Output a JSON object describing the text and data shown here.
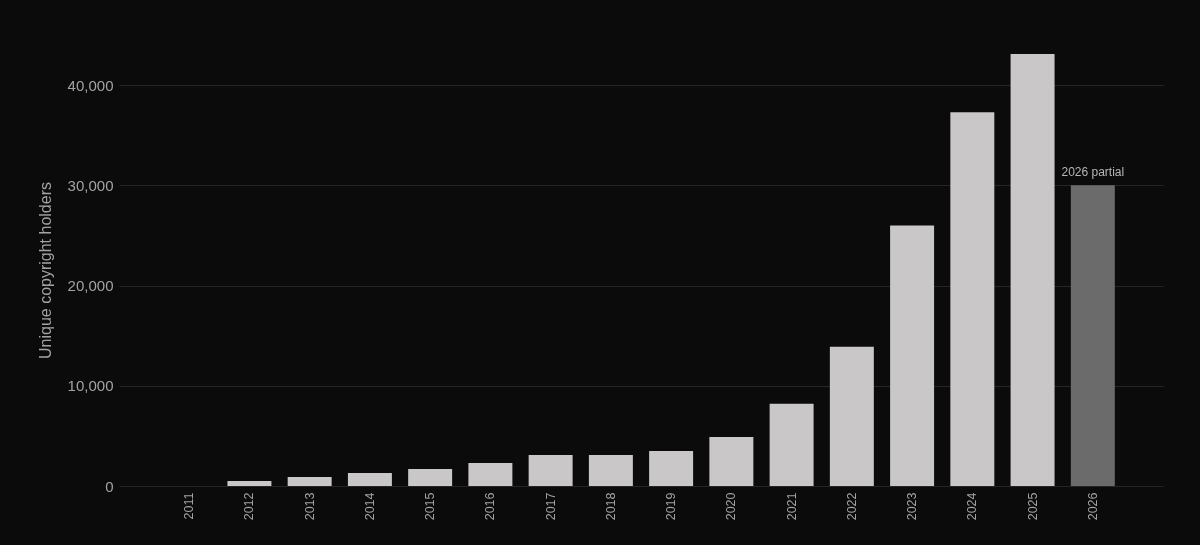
{
  "chart_data": {
    "type": "bar",
    "ylabel": "Unique copyright holders",
    "categories": [
      "2011",
      "2012",
      "2013",
      "2014",
      "2015",
      "2016",
      "2017",
      "2018",
      "2019",
      "2020",
      "2021",
      "2022",
      "2023",
      "2024",
      "2025",
      "2026"
    ],
    "values": [
      0,
      500,
      900,
      1300,
      1700,
      2300,
      3100,
      3100,
      3500,
      4900,
      8200,
      13900,
      26000,
      37300,
      43100,
      30000
    ],
    "colors": [
      "#c9c7c8",
      "#c9c7c8",
      "#c9c7c8",
      "#c9c7c8",
      "#c9c7c8",
      "#c9c7c8",
      "#c9c7c8",
      "#c9c7c8",
      "#c9c7c8",
      "#c9c7c8",
      "#c9c7c8",
      "#c9c7c8",
      "#c9c7c8",
      "#c9c7c8",
      "#c9c7c8",
      "#6b6b6b"
    ],
    "ylim": [
      0,
      43100
    ],
    "yticks": [
      0,
      {
        "value": 10000,
        "label": "10,000"
      },
      {
        "value": 20000,
        "label": "20,000"
      },
      {
        "value": 30000,
        "label": "30,000"
      },
      {
        "value": 40000,
        "label": "40,000"
      }
    ],
    "grid": "y",
    "annotations": [
      {
        "text": "2026 partial",
        "x": "2026",
        "y": 30000
      }
    ]
  }
}
